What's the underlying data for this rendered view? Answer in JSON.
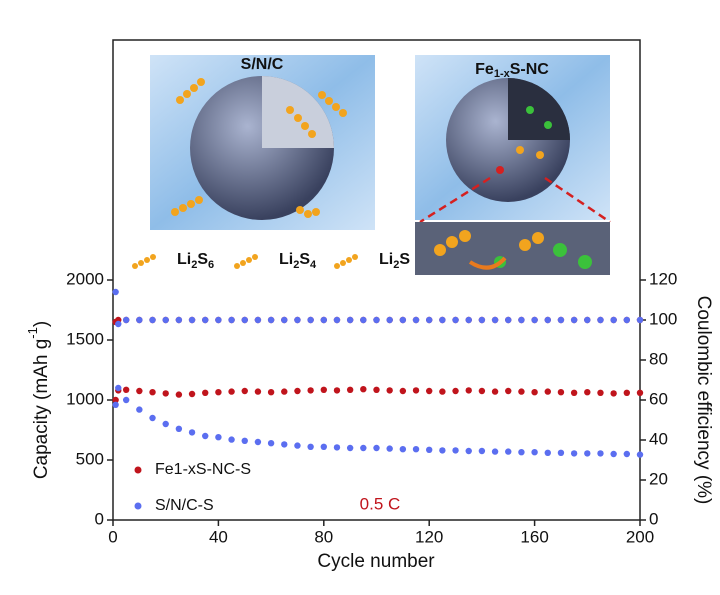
{
  "chart_data": {
    "type": "scatter",
    "xlabel": "Cycle number",
    "ylabel": {
      "text": "Capacity (mAh g",
      "superscript": "-1",
      "close": ")"
    },
    "y2label": "Coulombic efficiency (%)",
    "annotation": "0.5 C",
    "inset_titles": {
      "left": "S/N/C",
      "right": [
        "Fe",
        "1-x",
        "S-NC"
      ]
    },
    "molecules": [
      [
        "Li",
        "2",
        "S",
        "6"
      ],
      [
        "Li",
        "2",
        "S",
        "4"
      ],
      [
        "Li",
        "2",
        "S"
      ]
    ],
    "xlim": [
      0,
      200
    ],
    "xticks": [
      0,
      40,
      80,
      120,
      160,
      200
    ],
    "ylim": [
      0,
      4000
    ],
    "yticks": [
      0,
      500,
      1000,
      1500,
      2000
    ],
    "y2lim": [
      0,
      240
    ],
    "y2ticks": [
      0,
      20,
      40,
      60,
      80,
      100,
      120
    ],
    "x": [
      1,
      2,
      5,
      10,
      15,
      20,
      25,
      30,
      35,
      40,
      45,
      50,
      55,
      60,
      65,
      70,
      75,
      80,
      85,
      90,
      95,
      100,
      105,
      110,
      115,
      120,
      125,
      130,
      135,
      140,
      145,
      150,
      155,
      160,
      165,
      170,
      175,
      180,
      185,
      190,
      195,
      200
    ],
    "series": [
      {
        "name": "Fe1-xS-NC-S",
        "color": "#c0141c",
        "values": [
          1000,
          1080,
          1085,
          1075,
          1065,
          1055,
          1045,
          1050,
          1060,
          1065,
          1070,
          1075,
          1070,
          1065,
          1070,
          1075,
          1080,
          1085,
          1080,
          1085,
          1090,
          1085,
          1080,
          1075,
          1080,
          1075,
          1070,
          1075,
          1080,
          1075,
          1070,
          1075,
          1070,
          1065,
          1070,
          1065,
          1060,
          1065,
          1060,
          1055,
          1060,
          1060
        ]
      },
      {
        "name": "S/N/C-S",
        "color": "#5b6ef0",
        "values": [
          960,
          1100,
          1000,
          920,
          850,
          800,
          760,
          730,
          700,
          690,
          670,
          660,
          650,
          640,
          630,
          620,
          610,
          610,
          605,
          600,
          600,
          600,
          595,
          590,
          590,
          585,
          580,
          580,
          575,
          575,
          570,
          570,
          565,
          565,
          560,
          560,
          555,
          555,
          555,
          550,
          550,
          545
        ]
      },
      {
        "color": "#c0141c",
        "axis": "y2",
        "values": [
          99,
          100,
          100,
          100,
          100,
          100,
          100,
          100,
          100,
          100,
          100,
          100,
          100,
          100,
          100,
          100,
          100,
          100,
          100,
          100,
          100,
          100,
          100,
          100,
          100,
          100,
          100,
          100,
          100,
          100,
          100,
          100,
          100,
          100,
          100,
          100,
          100,
          100,
          100,
          100,
          100,
          100
        ]
      },
      {
        "color": "#5b6ef0",
        "axis": "y2",
        "values": [
          114,
          98,
          100,
          100,
          100,
          100,
          100,
          100,
          100,
          100,
          100,
          100,
          100,
          100,
          100,
          100,
          100,
          100,
          100,
          100,
          100,
          100,
          100,
          100,
          100,
          100,
          100,
          100,
          100,
          100,
          100,
          100,
          100,
          100,
          100,
          100,
          100,
          100,
          100,
          100,
          100,
          100
        ]
      }
    ]
  }
}
